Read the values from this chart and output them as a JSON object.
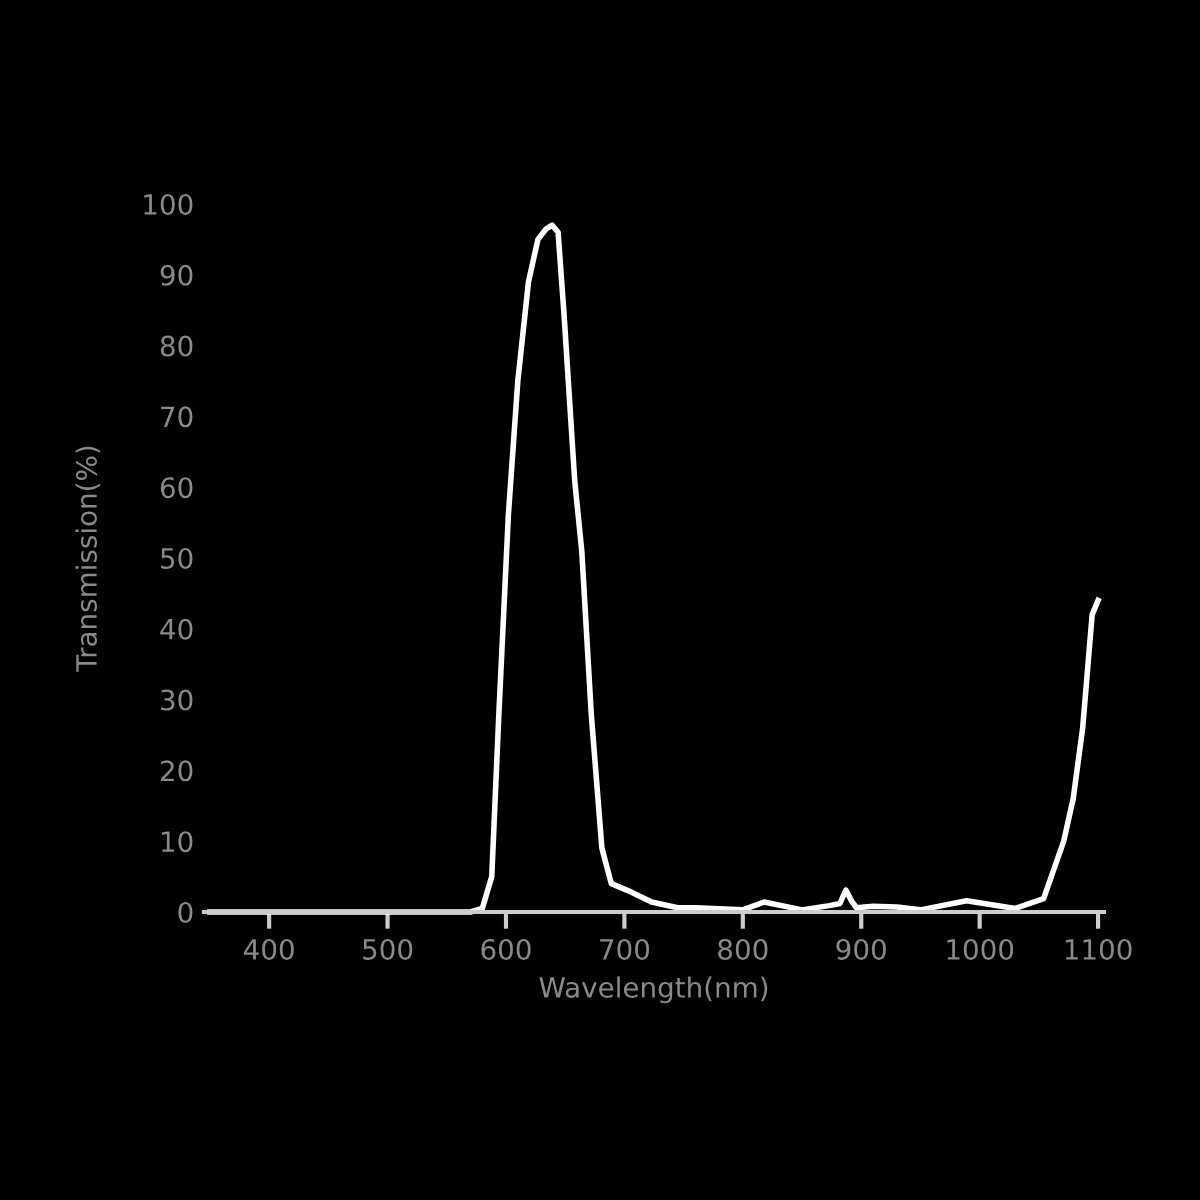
{
  "chart_data": {
    "type": "line",
    "xlabel": "Wavelength(nm)",
    "ylabel": "Transmission(%)",
    "series": [
      {
        "color": "#ffffff",
        "x": [
          350,
          500,
          570,
          580,
          588,
          594,
          602,
          610,
          619,
          627,
          634,
          639,
          644,
          649,
          658,
          664,
          672,
          681,
          689,
          706,
          723,
          745,
          760,
          800,
          818,
          850,
          873,
          882,
          887,
          892,
          896,
          910,
          930,
          950,
          989,
          1030,
          1054,
          1071,
          1079,
          1087,
          1095,
          1100
        ],
        "values": [
          0,
          0,
          0,
          0.5,
          5,
          28,
          56,
          75,
          89,
          95,
          96.5,
          97,
          96,
          84.5,
          61,
          51,
          28,
          9,
          4,
          2.8,
          1.4,
          0.6,
          0.6,
          0.3,
          1.4,
          0.3,
          0.9,
          1.2,
          3.1,
          1.5,
          0.6,
          0.8,
          0.7,
          0.3,
          1.6,
          0.5,
          1.9,
          10,
          16,
          26,
          42,
          44
        ]
      }
    ],
    "xlim": [
      345,
      1105
    ],
    "ylim": [
      0,
      100
    ],
    "xticks": [
      400,
      500,
      600,
      700,
      800,
      900,
      1000,
      1100
    ],
    "yticks": [
      0,
      10,
      20,
      30,
      40,
      50,
      60,
      70,
      80,
      90,
      100
    ],
    "marker": "none",
    "line_style": "solid"
  }
}
